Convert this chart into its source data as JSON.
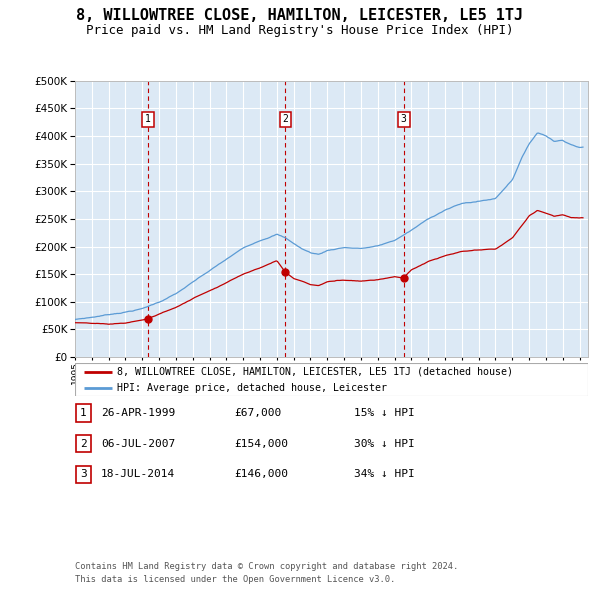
{
  "title": "8, WILLOWTREE CLOSE, HAMILTON, LEICESTER, LE5 1TJ",
  "subtitle": "Price paid vs. HM Land Registry's House Price Index (HPI)",
  "legend_line1": "8, WILLOWTREE CLOSE, HAMILTON, LEICESTER, LE5 1TJ (detached house)",
  "legend_line2": "HPI: Average price, detached house, Leicester",
  "footer_line1": "Contains HM Land Registry data © Crown copyright and database right 2024.",
  "footer_line2": "This data is licensed under the Open Government Licence v3.0.",
  "sales": [
    {
      "num": 1,
      "date": "26-APR-1999",
      "price": "£67,000",
      "pct": "15%",
      "dir": "↓",
      "year": 1999.32
    },
    {
      "num": 2,
      "date": "06-JUL-2007",
      "price": "£154,000",
      "pct": "30%",
      "dir": "↓",
      "year": 2007.51
    },
    {
      "num": 3,
      "date": "18-JUL-2014",
      "price": "£146,000",
      "pct": "34%",
      "dir": "↓",
      "year": 2014.54
    }
  ],
  "ylim": [
    0,
    500000
  ],
  "ytick_vals": [
    0,
    50000,
    100000,
    150000,
    200000,
    250000,
    300000,
    350000,
    400000,
    450000,
    500000
  ],
  "hpi_color": "#5b9bd5",
  "price_color": "#c00000",
  "dash_color": "#c00000",
  "plot_bg": "#dce9f5",
  "grid_color": "#ffffff",
  "box_color": "#c00000",
  "title_fs": 11,
  "subtitle_fs": 9,
  "hpi_knots_x": [
    1995,
    1996,
    1997,
    1998,
    1999,
    2000,
    2001,
    2002,
    2003,
    2004,
    2005,
    2006,
    2007,
    2007.5,
    2008,
    2008.5,
    2009,
    2009.5,
    2010,
    2011,
    2012,
    2013,
    2014,
    2015,
    2016,
    2017,
    2018,
    2019,
    2020,
    2021,
    2021.5,
    2022,
    2022.5,
    2023,
    2023.5,
    2024,
    2024.5,
    2025
  ],
  "hpi_knots_y": [
    68000,
    72000,
    77000,
    82000,
    88000,
    100000,
    115000,
    135000,
    155000,
    175000,
    195000,
    210000,
    222000,
    215000,
    205000,
    195000,
    188000,
    185000,
    192000,
    198000,
    196000,
    200000,
    210000,
    228000,
    248000,
    265000,
    276000,
    280000,
    285000,
    320000,
    355000,
    385000,
    405000,
    400000,
    390000,
    392000,
    385000,
    380000
  ],
  "red_knots_x": [
    1995,
    1996,
    1997,
    1998,
    1999.32,
    1999.32,
    2000,
    2001,
    2002,
    2003,
    2004,
    2005,
    2006,
    2007.0,
    2007.51,
    2007.51,
    2007.7,
    2008,
    2008.5,
    2009,
    2009.5,
    2010,
    2011,
    2012,
    2013,
    2014.0,
    2014.54,
    2014.54,
    2015,
    2016,
    2017,
    2018,
    2019,
    2020,
    2021,
    2022,
    2022.5,
    2023,
    2023.5,
    2024,
    2024.5,
    2025
  ],
  "red_knots_y": [
    62000,
    60000,
    58000,
    60000,
    67000,
    67000,
    76000,
    88000,
    104000,
    119000,
    134000,
    150000,
    162000,
    175000,
    154000,
    154000,
    150000,
    143000,
    138000,
    132000,
    130000,
    137000,
    140000,
    139000,
    142000,
    148000,
    146000,
    146000,
    160000,
    175000,
    185000,
    192000,
    194000,
    195000,
    215000,
    255000,
    265000,
    260000,
    255000,
    258000,
    253000,
    252000
  ]
}
